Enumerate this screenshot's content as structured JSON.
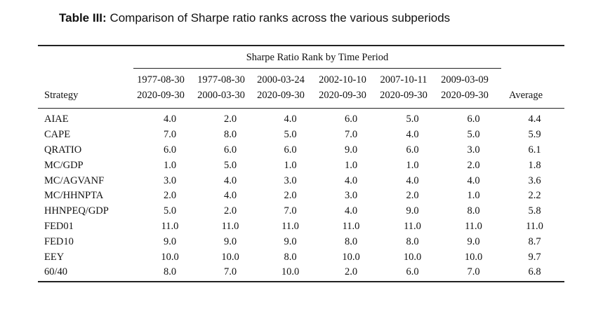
{
  "caption": {
    "label": "Table III:",
    "text": "Comparison of Sharpe ratio ranks across the various subperiods"
  },
  "header": {
    "group_title": "Sharpe Ratio Rank by Time Period",
    "strategy_label": "Strategy",
    "average_label": "Average",
    "periods": [
      {
        "start": "1977-08-30",
        "end": "2020-09-30"
      },
      {
        "start": "1977-08-30",
        "end": "2000-03-30"
      },
      {
        "start": "2000-03-24",
        "end": "2020-09-30"
      },
      {
        "start": "2002-10-10",
        "end": "2020-09-30"
      },
      {
        "start": "2007-10-11",
        "end": "2020-09-30"
      },
      {
        "start": "2009-03-09",
        "end": "2020-09-30"
      }
    ]
  },
  "rows": [
    {
      "strategy": "AIAE",
      "values": [
        "4.0",
        "2.0",
        "4.0",
        "6.0",
        "5.0",
        "6.0",
        "4.4"
      ]
    },
    {
      "strategy": "CAPE",
      "values": [
        "7.0",
        "8.0",
        "5.0",
        "7.0",
        "4.0",
        "5.0",
        "5.9"
      ]
    },
    {
      "strategy": "QRATIO",
      "values": [
        "6.0",
        "6.0",
        "6.0",
        "9.0",
        "6.0",
        "3.0",
        "6.1"
      ]
    },
    {
      "strategy": "MC/GDP",
      "values": [
        "1.0",
        "5.0",
        "1.0",
        "1.0",
        "1.0",
        "2.0",
        "1.8"
      ]
    },
    {
      "strategy": "MC/AGVANF",
      "values": [
        "3.0",
        "4.0",
        "3.0",
        "4.0",
        "4.0",
        "4.0",
        "3.6"
      ]
    },
    {
      "strategy": "MC/HHNPTA",
      "values": [
        "2.0",
        "4.0",
        "2.0",
        "3.0",
        "2.0",
        "1.0",
        "2.2"
      ]
    },
    {
      "strategy": "HHNPEQ/GDP",
      "values": [
        "5.0",
        "2.0",
        "7.0",
        "4.0",
        "9.0",
        "8.0",
        "5.8"
      ]
    },
    {
      "strategy": "FED01",
      "values": [
        "11.0",
        "11.0",
        "11.0",
        "11.0",
        "11.0",
        "11.0",
        "11.0"
      ]
    },
    {
      "strategy": "FED10",
      "values": [
        "9.0",
        "9.0",
        "9.0",
        "8.0",
        "8.0",
        "9.0",
        "8.7"
      ]
    },
    {
      "strategy": "EEY",
      "values": [
        "10.0",
        "10.0",
        "8.0",
        "10.0",
        "10.0",
        "10.0",
        "9.7"
      ]
    },
    {
      "strategy": "60/40",
      "values": [
        "8.0",
        "7.0",
        "10.0",
        "2.0",
        "6.0",
        "7.0",
        "6.8"
      ]
    }
  ]
}
